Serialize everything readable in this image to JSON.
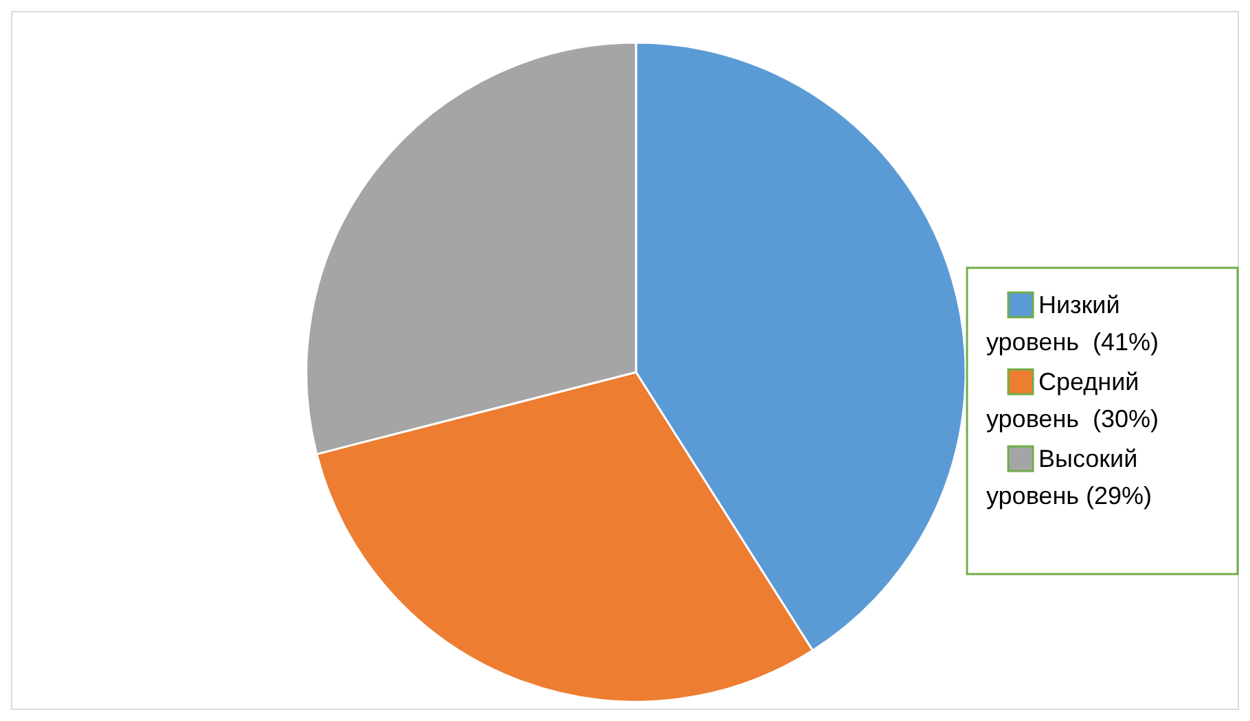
{
  "chart_data": {
    "type": "pie",
    "categories": [
      "Низкий уровень  (41%)",
      "Средний уровень  (30%)",
      "Высокий уровень (29%)"
    ],
    "values": [
      41,
      30,
      29
    ],
    "colors": [
      "#5b9bd5",
      "#ed7d31",
      "#a5a5a5"
    ],
    "legend": "right"
  }
}
